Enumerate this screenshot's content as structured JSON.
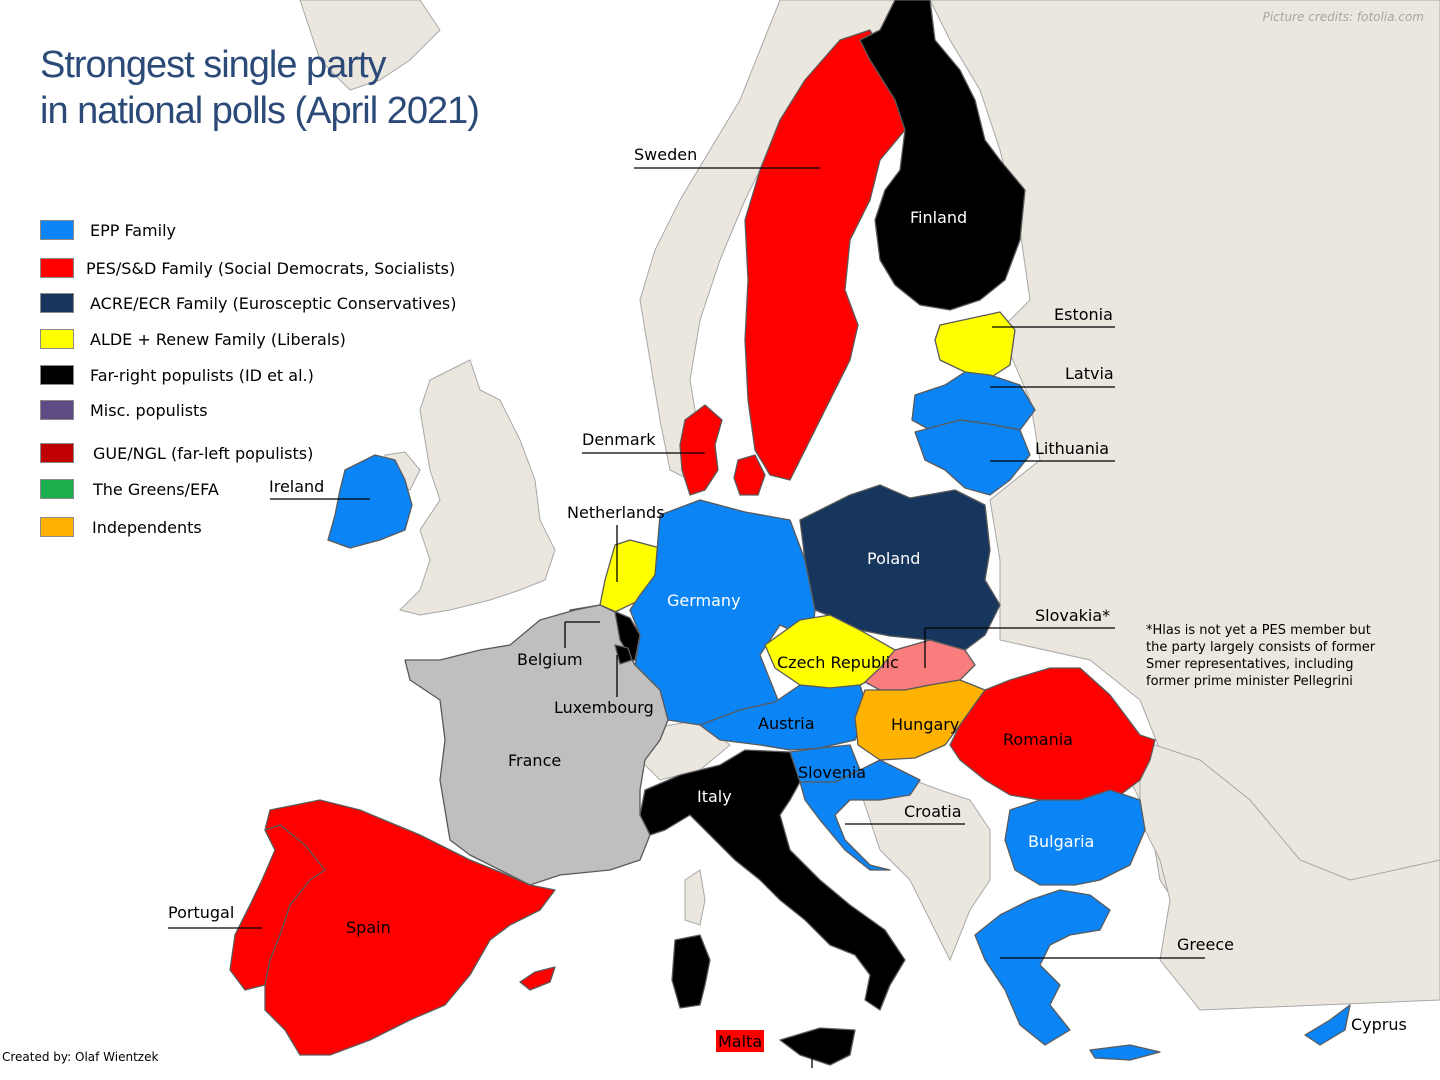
{
  "title": {
    "line1": "Strongest single party",
    "line2": "in national polls (April 2021)"
  },
  "picture_credits": "Picture credits: fotolia.com",
  "created_by": "Created by: Olaf Wientzek",
  "legend": [
    {
      "label": "EPP Family",
      "color": "#0b84f5"
    },
    {
      "label": "PES/S&D Family (Social Democrats,  Socialists)",
      "color": "#ff0000"
    },
    {
      "label": "ACRE/ECR Family (Eurosceptic Conservatives)",
      "color": "#17365d"
    },
    {
      "label": "ALDE + Renew Family (Liberals)",
      "color": "#ffff00"
    },
    {
      "label": "Far-right populists (ID et al.)",
      "color": "#000000"
    },
    {
      "label": "Misc. populists",
      "color": "#5f4b84"
    },
    {
      "label": "GUE/NGL (far-left populists)",
      "color": "#c00000"
    },
    {
      "label": "The Greens/EFA",
      "color": "#1aae4c"
    },
    {
      "label": "Independents",
      "color": "#ffb300"
    }
  ],
  "colors": {
    "non_eu_land": "#ebe7df",
    "no_data": "#bfbfbf",
    "slovakia": "#fa7d7d",
    "sea": "#ffffff"
  },
  "countries": {
    "sweden": "Sweden",
    "finland": "Finland",
    "estonia": "Estonia",
    "latvia": "Latvia",
    "lithuania": "Lithuania",
    "denmark": "Denmark",
    "ireland": "Ireland",
    "netherlands": "Netherlands",
    "germany": "Germany",
    "poland": "Poland",
    "belgium": "Belgium",
    "luxembourg": "Luxembourg",
    "czech": "Czech Republic",
    "slovakia": "Slovakia*",
    "austria": "Austria",
    "hungary": "Hungary",
    "romania": "Romania",
    "france": "France",
    "slovenia": "Slovenia",
    "italy": "Italy",
    "croatia": "Croatia",
    "bulgaria": "Bulgaria",
    "portugal": "Portugal",
    "spain": "Spain",
    "greece": "Greece",
    "malta": "Malta",
    "cyprus": "Cyprus"
  },
  "footnote": "*Hlas is not yet a PES member but the party largely consists of former Smer representatives, including former prime minister Pellegrini"
}
